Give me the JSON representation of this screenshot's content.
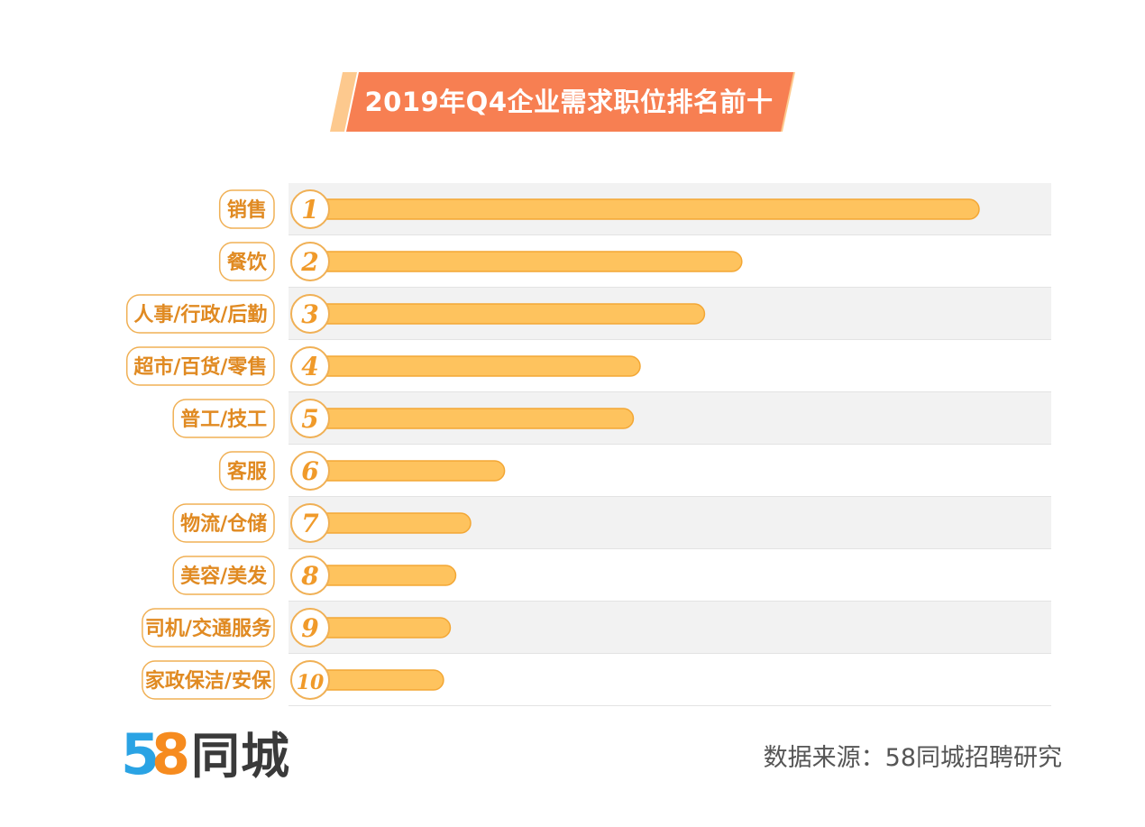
{
  "title": "2019年Q4企业需求职位排名前十",
  "chart_data": {
    "type": "bar",
    "orientation": "horizontal",
    "title": "2019年Q4企业需求职位排名前十",
    "xlabel": "",
    "ylabel": "",
    "categories": [
      "销售",
      "餐饮",
      "人事/行政/后勤",
      "超市/百货/零售",
      "普工/技工",
      "客服",
      "物流/仓储",
      "美容/美发",
      "司机/交通服务",
      "家政保洁/安保"
    ],
    "ranks": [
      "1",
      "2",
      "3",
      "4",
      "5",
      "6",
      "7",
      "8",
      "9",
      "10"
    ],
    "values": [
      100,
      65,
      59.5,
      50,
      49,
      30,
      25,
      22.8,
      22,
      21
    ],
    "xlim": [
      0,
      100
    ],
    "grid": false,
    "legend": "none"
  },
  "colors": {
    "bar": "#fec35e",
    "bar_stroke": "#f3a735",
    "badge_ring": "#f0b055",
    "rank_text": "#f09a2a",
    "label_text": "#e08a22",
    "band": "#f2f2f2",
    "banner": "#f77f52",
    "banner_accent": "#fdc98e"
  },
  "logo": {
    "digit1": "5",
    "digit2": "8",
    "text": "同城"
  },
  "source": "数据来源：58同城招聘研究"
}
